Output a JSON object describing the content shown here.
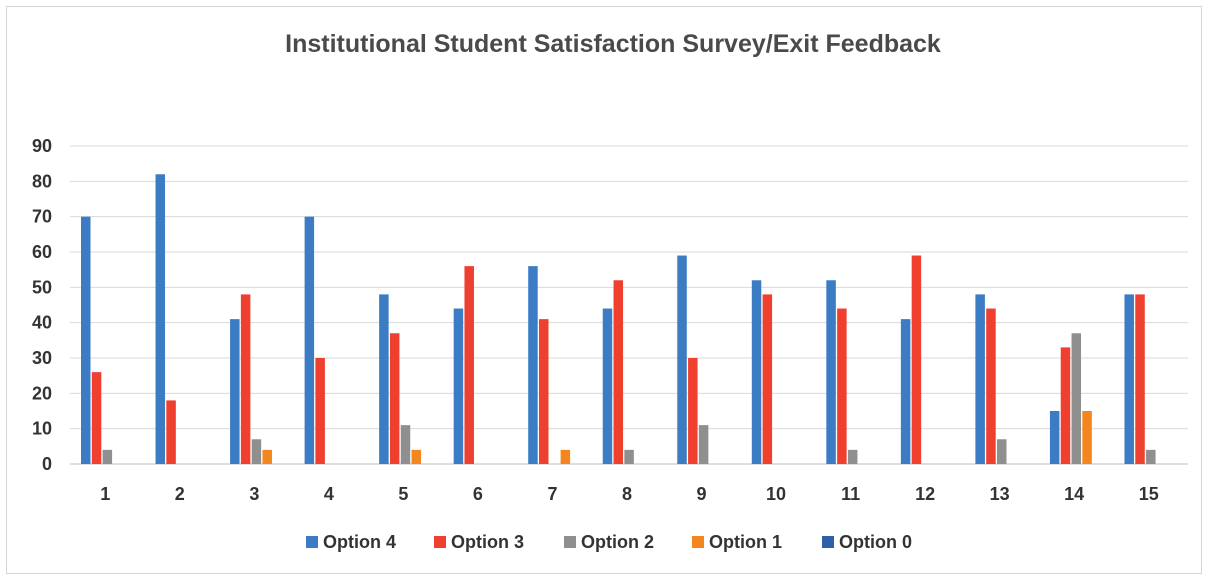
{
  "chart_data": {
    "type": "bar",
    "title": "Institutional Student Satisfaction Survey/Exit Feedback",
    "xlabel": "",
    "ylabel": "",
    "ylim": [
      0,
      90
    ],
    "yticks": [
      "0",
      "10",
      "20",
      "30",
      "40",
      "50",
      "60",
      "70",
      "80",
      "90"
    ],
    "categories": [
      "1",
      "2",
      "3",
      "4",
      "5",
      "6",
      "7",
      "8",
      "9",
      "10",
      "11",
      "12",
      "13",
      "14",
      "15"
    ],
    "grid": true,
    "legend": "bottom",
    "series": [
      {
        "name": "Option 4",
        "color": "#3b7cc4",
        "values": [
          70,
          82,
          41,
          70,
          48,
          44,
          56,
          44,
          59,
          52,
          52,
          41,
          48,
          15,
          48
        ]
      },
      {
        "name": "Option 3",
        "color": "#ef3f2f",
        "values": [
          26,
          18,
          48,
          30,
          37,
          56,
          41,
          52,
          30,
          48,
          44,
          59,
          44,
          33,
          48
        ]
      },
      {
        "name": "Option 2",
        "color": "#8f8f8f",
        "values": [
          4,
          0,
          7,
          0,
          11,
          0,
          0,
          4,
          11,
          0,
          4,
          0,
          7,
          37,
          4
        ]
      },
      {
        "name": "Option 1",
        "color": "#f5861f",
        "values": [
          0,
          0,
          4,
          0,
          4,
          0,
          4,
          0,
          0,
          0,
          0,
          0,
          0,
          15,
          0
        ]
      },
      {
        "name": "Option 0",
        "color": "#2f5fa8",
        "values": [
          0,
          0,
          0,
          0,
          0,
          0,
          0,
          0,
          0,
          0,
          0,
          0,
          0,
          0,
          0
        ]
      }
    ]
  }
}
